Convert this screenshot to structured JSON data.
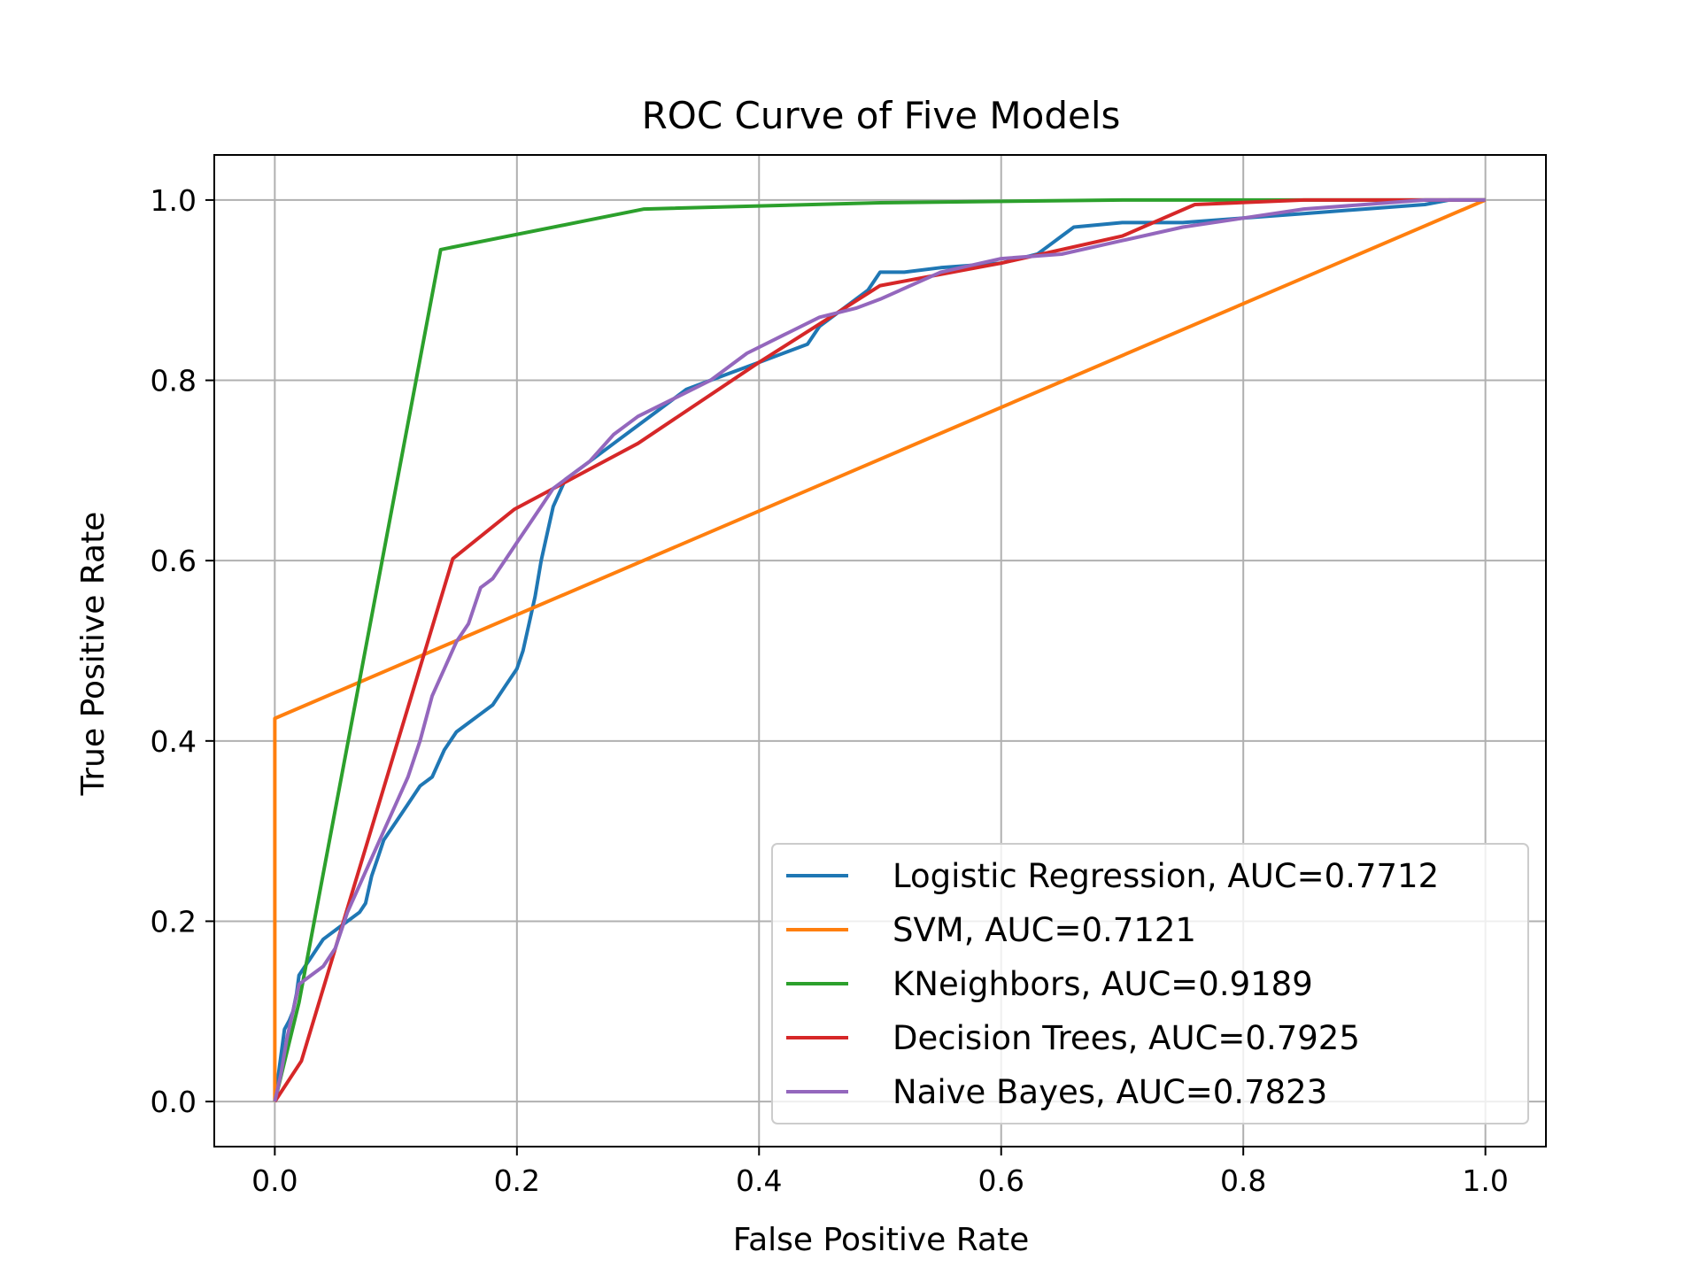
{
  "chart_data": {
    "type": "line",
    "title": "ROC Curve of Five Models",
    "xlabel": "False Positive Rate",
    "ylabel": "True Positive Rate",
    "xlim": [
      -0.05,
      1.05
    ],
    "ylim": [
      -0.05,
      1.05
    ],
    "xticks": [
      "0.0",
      "0.2",
      "0.4",
      "0.6",
      "0.8",
      "1.0"
    ],
    "yticks": [
      "0.0",
      "0.2",
      "0.4",
      "0.6",
      "0.8",
      "1.0"
    ],
    "grid": true,
    "legend_position": "lower-right",
    "series": [
      {
        "name": "Logistic Regression, AUC=0.7712",
        "color": "#1f77b4",
        "x": [
          0,
          0.005,
          0.008,
          0.012,
          0.015,
          0.018,
          0.02,
          0.025,
          0.03,
          0.035,
          0.04,
          0.045,
          0.05,
          0.055,
          0.06,
          0.07,
          0.075,
          0.08,
          0.085,
          0.09,
          0.1,
          0.11,
          0.12,
          0.13,
          0.14,
          0.15,
          0.16,
          0.17,
          0.18,
          0.19,
          0.2,
          0.205,
          0.21,
          0.215,
          0.22,
          0.225,
          0.23,
          0.24,
          0.26,
          0.28,
          0.3,
          0.32,
          0.34,
          0.36,
          0.38,
          0.4,
          0.42,
          0.44,
          0.45,
          0.47,
          0.49,
          0.5,
          0.52,
          0.55,
          0.6,
          0.63,
          0.64,
          0.65,
          0.66,
          0.7,
          0.75,
          0.8,
          0.85,
          0.9,
          0.95,
          0.97,
          1.0
        ],
        "y": [
          0,
          0.05,
          0.08,
          0.09,
          0.1,
          0.12,
          0.14,
          0.15,
          0.16,
          0.17,
          0.18,
          0.185,
          0.19,
          0.195,
          0.2,
          0.21,
          0.22,
          0.25,
          0.27,
          0.29,
          0.31,
          0.33,
          0.35,
          0.36,
          0.39,
          0.41,
          0.42,
          0.43,
          0.44,
          0.46,
          0.48,
          0.5,
          0.53,
          0.56,
          0.6,
          0.63,
          0.66,
          0.69,
          0.71,
          0.73,
          0.75,
          0.77,
          0.79,
          0.8,
          0.81,
          0.82,
          0.83,
          0.84,
          0.86,
          0.88,
          0.9,
          0.92,
          0.92,
          0.925,
          0.93,
          0.94,
          0.95,
          0.96,
          0.97,
          0.975,
          0.975,
          0.98,
          0.985,
          0.99,
          0.995,
          1.0,
          1.0
        ]
      },
      {
        "name": "SVM, AUC=0.7121",
        "color": "#ff7f0e",
        "x": [
          0,
          0,
          1.0
        ],
        "y": [
          0,
          0.425,
          1.0
        ]
      },
      {
        "name": "KNeighbors, AUC=0.9189",
        "color": "#2ca02c",
        "x": [
          0,
          0.02,
          0.137,
          0.305,
          0.5,
          0.7,
          1.0
        ],
        "y": [
          0,
          0.11,
          0.945,
          0.99,
          0.997,
          1.0,
          1.0
        ]
      },
      {
        "name": "Decision Trees, AUC=0.7925",
        "color": "#d62728",
        "x": [
          0,
          0.022,
          0.147,
          0.198,
          0.3,
          0.4,
          0.5,
          0.6,
          0.7,
          0.76,
          0.85,
          1.0
        ],
        "y": [
          0,
          0.045,
          0.602,
          0.657,
          0.73,
          0.82,
          0.905,
          0.93,
          0.96,
          0.995,
          1.0,
          1.0
        ]
      },
      {
        "name": "Naive Bayes, AUC=0.7823",
        "color": "#9467bd",
        "x": [
          0,
          0.005,
          0.01,
          0.015,
          0.02,
          0.03,
          0.04,
          0.05,
          0.055,
          0.06,
          0.07,
          0.08,
          0.09,
          0.1,
          0.11,
          0.12,
          0.13,
          0.14,
          0.15,
          0.16,
          0.17,
          0.18,
          0.19,
          0.2,
          0.21,
          0.22,
          0.23,
          0.24,
          0.26,
          0.28,
          0.3,
          0.33,
          0.36,
          0.39,
          0.42,
          0.45,
          0.48,
          0.5,
          0.55,
          0.6,
          0.65,
          0.7,
          0.75,
          0.8,
          0.85,
          0.9,
          0.95,
          1.0
        ],
        "y": [
          0,
          0.03,
          0.07,
          0.1,
          0.13,
          0.14,
          0.15,
          0.17,
          0.19,
          0.21,
          0.24,
          0.27,
          0.3,
          0.33,
          0.36,
          0.4,
          0.45,
          0.48,
          0.51,
          0.53,
          0.57,
          0.58,
          0.6,
          0.62,
          0.64,
          0.66,
          0.68,
          0.69,
          0.71,
          0.74,
          0.76,
          0.78,
          0.8,
          0.83,
          0.85,
          0.87,
          0.88,
          0.89,
          0.92,
          0.935,
          0.94,
          0.955,
          0.97,
          0.98,
          0.99,
          0.995,
          1.0,
          1.0
        ]
      }
    ]
  }
}
